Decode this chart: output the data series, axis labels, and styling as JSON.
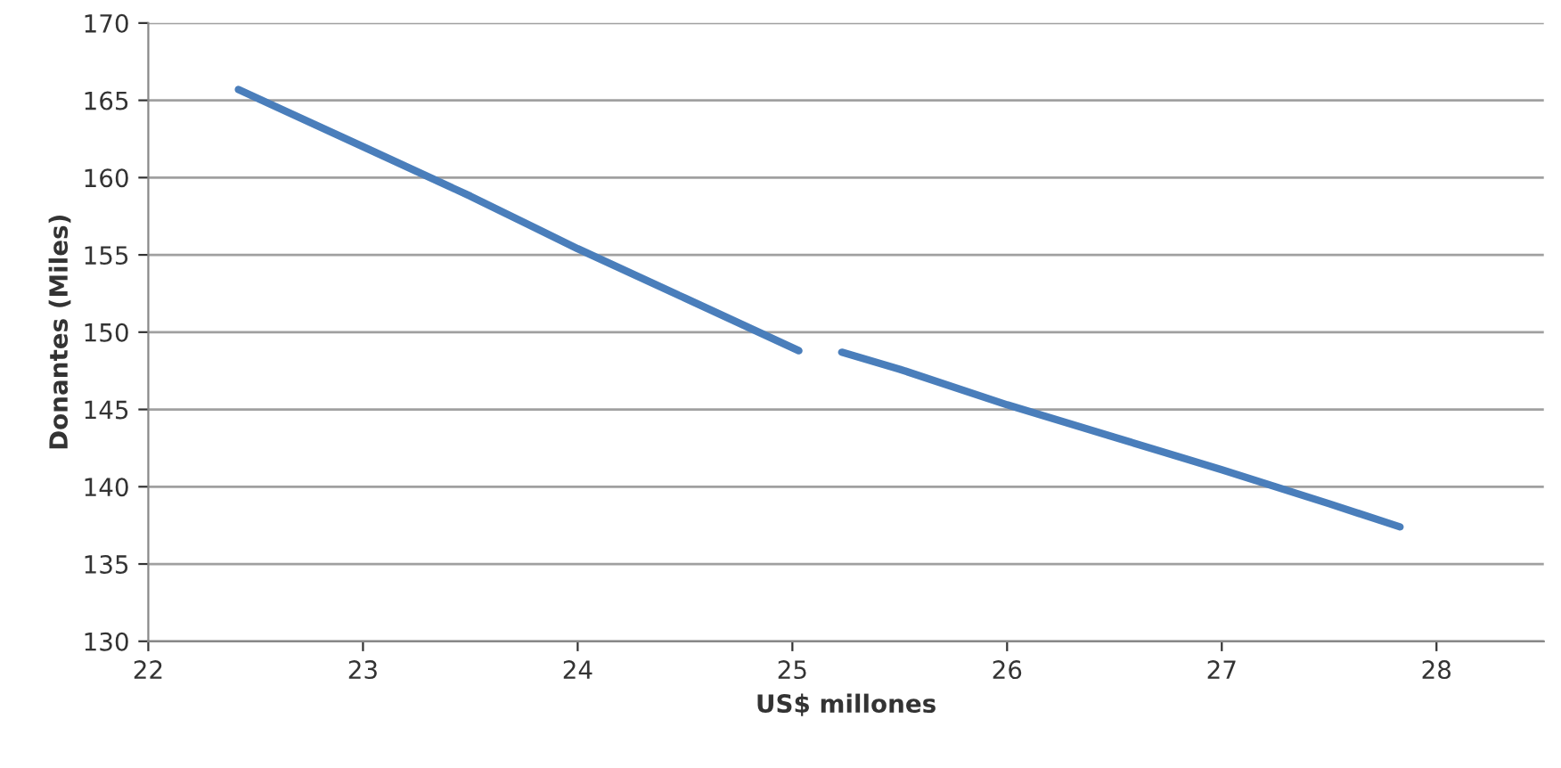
{
  "chart_data": {
    "type": "line",
    "xlabel": "US$ millones",
    "ylabel": "Donantes (Miles)",
    "x": [
      22.42,
      23.0,
      23.5,
      24.0,
      24.5,
      25.03,
      25.13,
      25.23,
      25.5,
      26.0,
      26.5,
      27.0,
      27.5,
      27.83
    ],
    "series": [
      {
        "color": "#4a7ebb",
        "values": [
          165.7,
          162.0,
          158.8,
          155.4,
          152.2,
          148.8,
          null,
          148.7,
          147.6,
          145.3,
          143.2,
          141.1,
          138.9,
          137.4
        ]
      }
    ],
    "xlim": [
      22,
      28.5
    ],
    "xticks": [
      22,
      23,
      24,
      25,
      26,
      27,
      28
    ],
    "ylim": [
      130,
      170
    ],
    "yticks": [
      130,
      135,
      140,
      145,
      150,
      155,
      160,
      165,
      170
    ],
    "grid": "y",
    "marker": "none",
    "line_style": "solid"
  }
}
